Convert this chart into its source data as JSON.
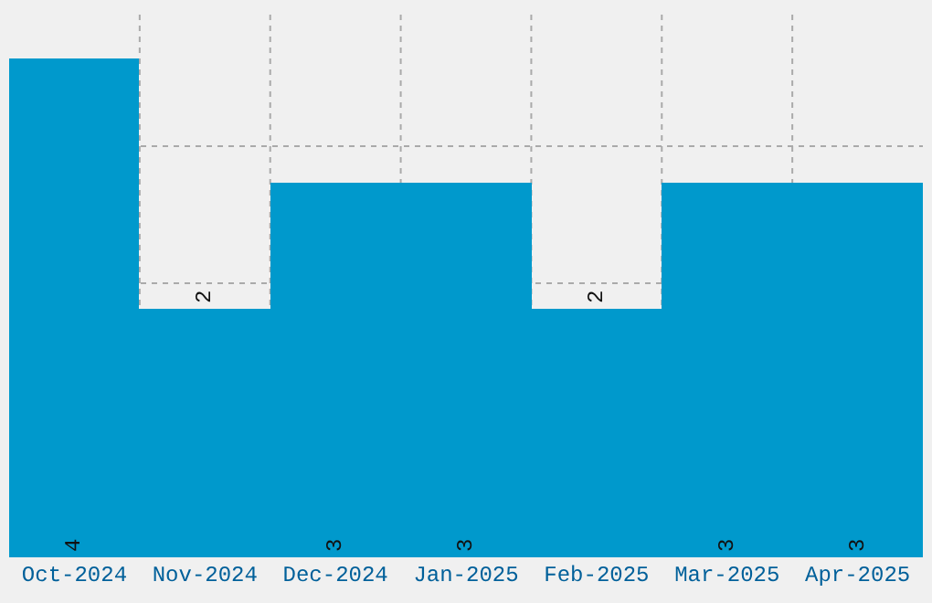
{
  "chart_data": {
    "type": "bar",
    "categories": [
      "Oct-2024",
      "Nov-2024",
      "Dec-2024",
      "Jan-2025",
      "Feb-2025",
      "Mar-2025",
      "Apr-2025"
    ],
    "values": [
      4,
      2,
      3,
      3,
      2,
      3,
      3
    ],
    "color": "#0099cc",
    "ylim": [
      0,
      4.4
    ],
    "grid": true,
    "data_labels": true,
    "tick_labels": "x"
  }
}
